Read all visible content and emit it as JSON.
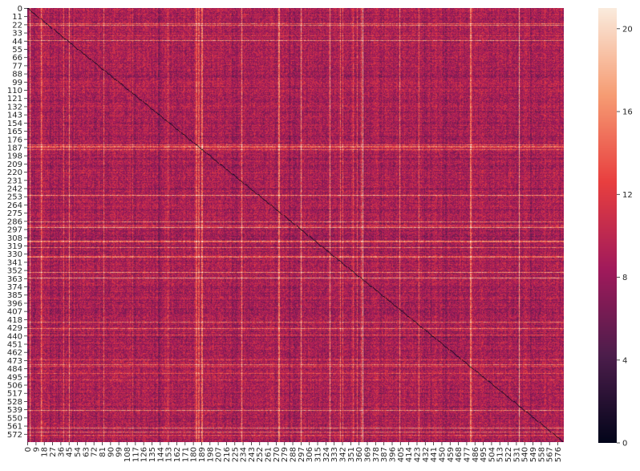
{
  "chart_data": {
    "type": "heatmap",
    "title": "",
    "xlabel": "",
    "ylabel": "",
    "n_rows": 583,
    "n_cols": 583,
    "tick_step": 9,
    "x_ticks": [
      0,
      9,
      18,
      27,
      36,
      45,
      54,
      63,
      72,
      81,
      90,
      99,
      108,
      117,
      126,
      135,
      144,
      153,
      162,
      171,
      180,
      189,
      198,
      207,
      216,
      225,
      234,
      243,
      252,
      261,
      270,
      279,
      288,
      297,
      306,
      315,
      324,
      333,
      342,
      351,
      360,
      369,
      378,
      387,
      396,
      405,
      414,
      423,
      432,
      441,
      450,
      459,
      468,
      477,
      486,
      495,
      504,
      513,
      522,
      531,
      540,
      549,
      558,
      567,
      576
    ],
    "y_tick_step": 11,
    "y_ticks": [
      0,
      11,
      22,
      33,
      44,
      55,
      66,
      77,
      88,
      99,
      110,
      121,
      132,
      143,
      154,
      165,
      176,
      187,
      198,
      209,
      220,
      231,
      242,
      253,
      264,
      275,
      286,
      297,
      308,
      319,
      330,
      341,
      352,
      363,
      374,
      385,
      396,
      407,
      418,
      429,
      440,
      451,
      462,
      473,
      484,
      495,
      506,
      517,
      528,
      539,
      550,
      561,
      572
    ],
    "diagonal_value": 0,
    "typical_value_range": [
      6,
      12
    ],
    "color_range": [
      0,
      21
    ],
    "colorbar_ticks": [
      0,
      4,
      8,
      12,
      16,
      20
    ],
    "colormap": "rocket",
    "colormap_stops": [
      "#03051a",
      "#4c1d4b",
      "#a11a5b",
      "#e83f3f",
      "#f69c73",
      "#faebdd"
    ]
  }
}
